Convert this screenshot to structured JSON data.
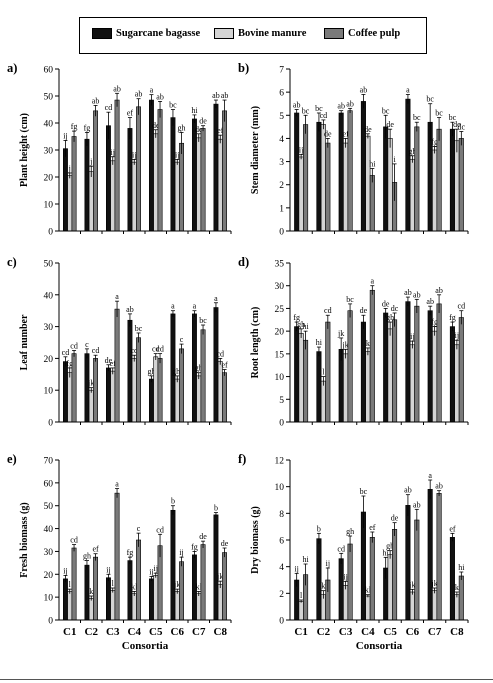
{
  "legend": [
    {
      "name": "Sugarcane bagasse",
      "color": "#111111"
    },
    {
      "name": "Bovine manure",
      "color": "#d4d4d4"
    },
    {
      "name": "Coffee pulp",
      "color": "#7a7a7a"
    }
  ],
  "chart_data": [
    {
      "panel": "a)",
      "type": "bar",
      "ylabel": "Plant height (cm)",
      "ylim": [
        0,
        60
      ],
      "yticks": [
        0,
        10,
        20,
        30,
        40,
        50,
        60
      ],
      "categories": [
        "C1",
        "C2",
        "C3",
        "C4",
        "C5",
        "C6",
        "C7",
        "C8"
      ],
      "xlabel": "",
      "series": [
        {
          "name": "Sugarcane bagasse",
          "values": [
            30.5,
            34,
            39,
            38,
            48.5,
            42,
            41.5,
            47
          ],
          "errors": [
            3,
            2.5,
            5,
            4,
            2,
            3,
            1.5,
            1.5
          ],
          "letters": [
            "ij",
            "fg",
            "cd",
            "ef",
            "a",
            "bc",
            "hi",
            "ab"
          ]
        },
        {
          "name": "Bovine manure",
          "values": [
            20.5,
            22,
            26,
            25.5,
            36,
            25.5,
            34.5,
            34
          ],
          "errors": [
            1,
            2,
            1.5,
            1,
            1.5,
            1,
            1.5,
            1.5
          ],
          "letters": [
            "j",
            "j",
            "ij",
            "ij",
            "de",
            "ij",
            "de",
            "ef"
          ]
        },
        {
          "name": "Coffee pulp",
          "values": [
            35,
            44.5,
            48.5,
            46,
            45,
            32.5,
            38,
            44.5
          ],
          "errors": [
            2,
            2,
            2.5,
            3,
            3,
            4,
            1,
            4
          ],
          "letters": [
            "fg",
            "ab",
            "ab",
            "ab",
            "ab",
            "gh",
            "de",
            "ab"
          ]
        }
      ]
    },
    {
      "panel": "b)",
      "type": "bar",
      "ylabel": "Stem diameter (mm)",
      "ylim": [
        0,
        7
      ],
      "yticks": [
        0,
        1,
        2,
        3,
        4,
        5,
        6,
        7
      ],
      "categories": [
        "C1",
        "C2",
        "C3",
        "C4",
        "C5",
        "C6",
        "C7",
        "C8"
      ],
      "xlabel": "",
      "series": [
        {
          "name": "Sugarcane bagasse",
          "values": [
            5.1,
            4.7,
            5.1,
            5.6,
            4.5,
            5.7,
            4.7,
            4.4
          ],
          "errors": [
            0.15,
            0.4,
            0.1,
            0.3,
            0.5,
            0.2,
            0.8,
            0.3
          ],
          "letters": [
            "ab",
            "bc",
            "ab",
            "ab",
            "bc",
            "a",
            "bc",
            "bc"
          ]
        },
        {
          "name": "Bovine manure",
          "values": [
            3.2,
            4.6,
            3.8,
            4.1,
            4.0,
            3.1,
            3.5,
            3.9
          ],
          "errors": [
            0.1,
            0.2,
            0.2,
            0.1,
            0.4,
            0.15,
            0.15,
            0.5
          ],
          "letters": [
            "ij",
            "cd",
            "ef",
            "de",
            "de",
            "gh",
            "fg",
            "de"
          ]
        },
        {
          "name": "Coffee pulp",
          "values": [
            4.6,
            3.8,
            5.2,
            2.4,
            2.1,
            4.5,
            4.4,
            4.0
          ],
          "errors": [
            0.4,
            0.2,
            0.1,
            0.3,
            0.8,
            0.2,
            0.5,
            0.3
          ],
          "letters": [
            "bc",
            "de",
            "ab",
            "hi",
            "i",
            "bc",
            "bc",
            "dc"
          ]
        }
      ]
    },
    {
      "panel": "c)",
      "type": "bar",
      "ylabel": "Leaf number",
      "ylim": [
        0,
        50
      ],
      "yticks": [
        0,
        10,
        20,
        30,
        40,
        50
      ],
      "categories": [
        "C1",
        "C2",
        "C3",
        "C4",
        "C5",
        "C6",
        "C7",
        "C8"
      ],
      "xlabel": "",
      "series": [
        {
          "name": "Sugarcane bagasse",
          "values": [
            19,
            21.5,
            17,
            32,
            13.5,
            34,
            34,
            36
          ],
          "errors": [
            1.5,
            1.5,
            1,
            2,
            1,
            1,
            1,
            1.5
          ],
          "letters": [
            "cd",
            "c",
            "de",
            "ab",
            "gh",
            "a",
            "a",
            "a"
          ]
        },
        {
          "name": "Bovine manure",
          "values": [
            15.5,
            10,
            16,
            20,
            20.5,
            13.5,
            14.5,
            19
          ],
          "errors": [
            1.5,
            0.8,
            1,
            1,
            1,
            1,
            1,
            1
          ],
          "letters": [
            "fg",
            "jk",
            "ef",
            "cd",
            "cd",
            "ghi",
            "gh",
            "cd"
          ]
        },
        {
          "name": "Coffee pulp",
          "values": [
            21.5,
            20,
            35.5,
            26.5,
            20,
            23,
            29,
            15.5
          ],
          "errors": [
            1,
            1,
            2.5,
            1.5,
            1.5,
            1.5,
            1.5,
            1
          ],
          "letters": [
            "cd",
            "cd",
            "a",
            "bc",
            "cd",
            "c",
            "bc",
            "ef"
          ]
        }
      ]
    },
    {
      "panel": "d)",
      "type": "bar",
      "ylabel": "Root length (cm)",
      "ylim": [
        0,
        35
      ],
      "yticks": [
        0,
        5,
        10,
        15,
        20,
        25,
        30,
        35
      ],
      "categories": [
        "C1",
        "C2",
        "C3",
        "C4",
        "C5",
        "C6",
        "C7",
        "C8"
      ],
      "xlabel": "",
      "series": [
        {
          "name": "Sugarcane bagasse",
          "values": [
            21,
            15.5,
            16,
            22,
            24,
            26.5,
            24.5,
            21
          ],
          "errors": [
            1,
            1,
            2.5,
            1.5,
            1,
            1,
            1,
            1
          ],
          "letters": [
            "fg",
            "hi",
            "jk",
            "de",
            "de",
            "ab",
            "ab",
            "fg"
          ]
        },
        {
          "name": "Bovine manure",
          "values": [
            19.5,
            9,
            15,
            15.5,
            20.5,
            17,
            20,
            17
          ],
          "errors": [
            1,
            1,
            1,
            0.8,
            1.5,
            0.8,
            1,
            1
          ],
          "letters": [
            "gh",
            "l",
            "jk",
            "k",
            "gh",
            "ij",
            "fg",
            "ij"
          ]
        },
        {
          "name": "Coffee pulp",
          "values": [
            18,
            22,
            24.5,
            29,
            22.5,
            25.5,
            26,
            23
          ],
          "errors": [
            2,
            1.5,
            1.5,
            1,
            1.5,
            1.5,
            2,
            1.5
          ],
          "letters": [
            "hi",
            "cd",
            "bc",
            "a",
            "dc",
            "ab",
            "ab",
            "cd"
          ]
        }
      ]
    },
    {
      "panel": "e)",
      "type": "bar",
      "ylabel": "Fresh biomass (g)",
      "ylim": [
        0,
        70
      ],
      "yticks": [
        0,
        10,
        20,
        30,
        40,
        50,
        60,
        70
      ],
      "categories": [
        "C1",
        "C2",
        "C3",
        "C4",
        "C5",
        "C6",
        "C7",
        "C8"
      ],
      "xlabel": "Consortia",
      "series": [
        {
          "name": "Sugarcane bagasse",
          "values": [
            18,
            24,
            18.5,
            26,
            18,
            48,
            28.5,
            46
          ],
          "errors": [
            1.5,
            2,
            1.5,
            1.5,
            1,
            2,
            1.5,
            1
          ],
          "letters": [
            "ij",
            "gh",
            "ij",
            "fg",
            "ij",
            "b",
            "fg",
            "b"
          ]
        },
        {
          "name": "Bovine manure",
          "values": [
            12.5,
            9.5,
            13,
            11.5,
            19.5,
            12.5,
            11.5,
            15.5
          ],
          "errors": [
            1,
            1,
            1,
            1,
            1,
            1,
            1,
            1.5
          ],
          "letters": [
            "l",
            "k",
            "l",
            "kl",
            "ij",
            "jk",
            "kl",
            "jk"
          ]
        },
        {
          "name": "Coffee pulp",
          "values": [
            31.5,
            27.5,
            55.5,
            35,
            32.5,
            25.5,
            33,
            29.5
          ],
          "errors": [
            1.5,
            1.5,
            2,
            3,
            5,
            2,
            1.5,
            2
          ],
          "letters": [
            "cd",
            "ef",
            "a",
            "c",
            "cd",
            "ij",
            "de",
            "de"
          ]
        }
      ]
    },
    {
      "panel": "f)",
      "type": "bar",
      "ylabel": "Dry biomass (g)",
      "ylim": [
        0,
        12
      ],
      "yticks": [
        0,
        2,
        4,
        6,
        8,
        10,
        12
      ],
      "categories": [
        "C1",
        "C2",
        "C3",
        "C4",
        "C5",
        "C6",
        "C7",
        "C8"
      ],
      "xlabel": "Consortia",
      "series": [
        {
          "name": "Sugarcane bagasse",
          "values": [
            3,
            6.1,
            4.6,
            8.1,
            3.9,
            8.6,
            9.8,
            6.2
          ],
          "errors": [
            0.5,
            0.4,
            0.4,
            1.2,
            0.8,
            0.8,
            0.7,
            0.3
          ],
          "letters": [
            "ij",
            "b",
            "cd",
            "bc",
            "hi",
            "ab",
            "a",
            "ef"
          ]
        },
        {
          "name": "Bovine manure",
          "values": [
            1.4,
            1.9,
            2.6,
            1.8,
            4.9,
            2.1,
            2.2,
            1.9
          ],
          "errors": [
            0.1,
            0.3,
            0.3,
            0.1,
            0.3,
            0.2,
            0.2,
            0.2
          ],
          "letters": [
            "l",
            "k",
            "ij",
            "kl",
            "gh",
            "jk",
            "jk",
            "k"
          ]
        },
        {
          "name": "Coffee pulp",
          "values": [
            3.4,
            3.0,
            5.7,
            6.2,
            6.8,
            7.5,
            9.5,
            3.3
          ],
          "errors": [
            0.8,
            0.9,
            0.6,
            0.4,
            0.5,
            0.8,
            0.2,
            0.3
          ],
          "letters": [
            "hi",
            "ij",
            "gh",
            "ef",
            "de",
            "ab",
            "ab",
            "hi"
          ]
        }
      ]
    }
  ]
}
